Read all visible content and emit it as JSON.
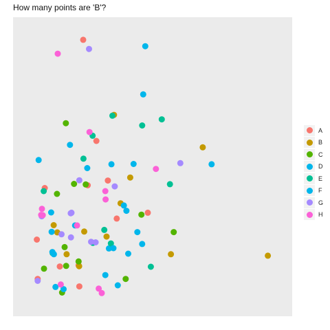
{
  "chart_data": {
    "type": "scatter",
    "title": "How many points are 'B'?",
    "xlabel": "",
    "ylabel": "",
    "xlim": [
      0,
      100
    ],
    "ylim": [
      0,
      100
    ],
    "grid": false,
    "legend_position": "right",
    "series": [
      {
        "name": "A",
        "color": "#F8766D",
        "points": [
          [
            22.7,
            95.8
          ],
          [
            27.9,
            59.3
          ],
          [
            7.6,
            42.3
          ],
          [
            24.5,
            43.3
          ],
          [
            32.4,
            45.0
          ],
          [
            35.9,
            31.3
          ],
          [
            4.5,
            23.7
          ],
          [
            13.5,
            14.0
          ],
          [
            20.9,
            14.4
          ],
          [
            4.8,
            9.5
          ],
          [
            21.2,
            6.8
          ],
          [
            48.1,
            33.4
          ]
        ]
      },
      {
        "name": "B",
        "color": "#C49A00",
        "points": [
          [
            34.8,
            68.7
          ],
          [
            69.7,
            57.0
          ],
          [
            41.2,
            46.1
          ],
          [
            37.4,
            36.8
          ],
          [
            11.1,
            28.9
          ],
          [
            12.5,
            26.3
          ],
          [
            23.1,
            26.6
          ],
          [
            31.9,
            24.8
          ],
          [
            16.2,
            18.4
          ],
          [
            21.1,
            14.1
          ],
          [
            57.2,
            18.4
          ],
          [
            95.3,
            17.9
          ]
        ]
      },
      {
        "name": "C",
        "color": "#53B400",
        "points": [
          [
            15.9,
            65.7
          ],
          [
            19.1,
            43.8
          ],
          [
            12.4,
            40.2
          ],
          [
            23.7,
            43.6
          ],
          [
            45.6,
            32.7
          ],
          [
            58.3,
            26.4
          ],
          [
            15.4,
            21.0
          ],
          [
            20.9,
            15.8
          ],
          [
            16.0,
            14.2
          ],
          [
            7.3,
            13.2
          ],
          [
            39.4,
            9.5
          ],
          [
            14.4,
            4.6
          ]
        ]
      },
      {
        "name": "D",
        "color": "#00B6EB",
        "points": [
          [
            47.1,
            93.5
          ],
          [
            46.3,
            76.1
          ],
          [
            24.3,
            49.5
          ],
          [
            33.8,
            50.9
          ],
          [
            42.5,
            51.0
          ],
          [
            73.2,
            50.9
          ],
          [
            38.7,
            36.0
          ],
          [
            39.7,
            34.1
          ],
          [
            19.5,
            28.8
          ],
          [
            10.3,
            26.5
          ],
          [
            44.0,
            26.4
          ],
          [
            32.8,
            20.5
          ]
        ]
      },
      {
        "name": "E",
        "color": "#00C094",
        "points": [
          [
            34.2,
            68.4
          ],
          [
            53.6,
            67.1
          ],
          [
            45.9,
            64.9
          ],
          [
            26.4,
            61.2
          ],
          [
            22.8,
            52.9
          ],
          [
            56.8,
            43.7
          ],
          [
            7.2,
            41.2
          ],
          [
            31.0,
            27.2
          ],
          [
            26.5,
            22.5
          ],
          [
            33.6,
            22.3
          ],
          [
            10.7,
            18.8
          ],
          [
            49.3,
            13.9
          ]
        ]
      },
      {
        "name": "F",
        "color": "#00B6EB",
        "points": [
          [
            17.5,
            57.9
          ],
          [
            5.2,
            52.4
          ],
          [
            10.1,
            33.5
          ],
          [
            10.6,
            19.2
          ],
          [
            11.2,
            18.4
          ],
          [
            34.6,
            20.6
          ],
          [
            40.4,
            18.6
          ],
          [
            45.9,
            22.1
          ],
          [
            31.4,
            10.9
          ],
          [
            36.3,
            7.2
          ],
          [
            11.8,
            6.6
          ],
          [
            15.0,
            5.8
          ]
        ]
      },
      {
        "name": "G",
        "color": "#A58AFF",
        "points": [
          [
            25.0,
            92.5
          ],
          [
            60.9,
            51.3
          ],
          [
            35.1,
            42.9
          ],
          [
            21.2,
            45.1
          ],
          [
            18.1,
            33.4
          ],
          [
            17.8,
            33.2
          ],
          [
            6.4,
            32.1
          ],
          [
            14.2,
            25.6
          ],
          [
            17.9,
            24.5
          ],
          [
            25.8,
            22.9
          ],
          [
            27.6,
            22.7
          ],
          [
            4.8,
            8.8
          ]
        ]
      },
      {
        "name": "H",
        "color": "#FB61D7",
        "points": [
          [
            12.7,
            90.8
          ],
          [
            25.2,
            62.5
          ],
          [
            51.3,
            49.2
          ],
          [
            31.4,
            41.2
          ],
          [
            31.5,
            38.2
          ],
          [
            6.5,
            34.8
          ],
          [
            6.2,
            32.6
          ],
          [
            6.8,
            32.5
          ],
          [
            20.3,
            28.8
          ],
          [
            13.9,
            7.5
          ],
          [
            30.0,
            4.4
          ],
          [
            28.8,
            6.0
          ]
        ]
      }
    ]
  }
}
